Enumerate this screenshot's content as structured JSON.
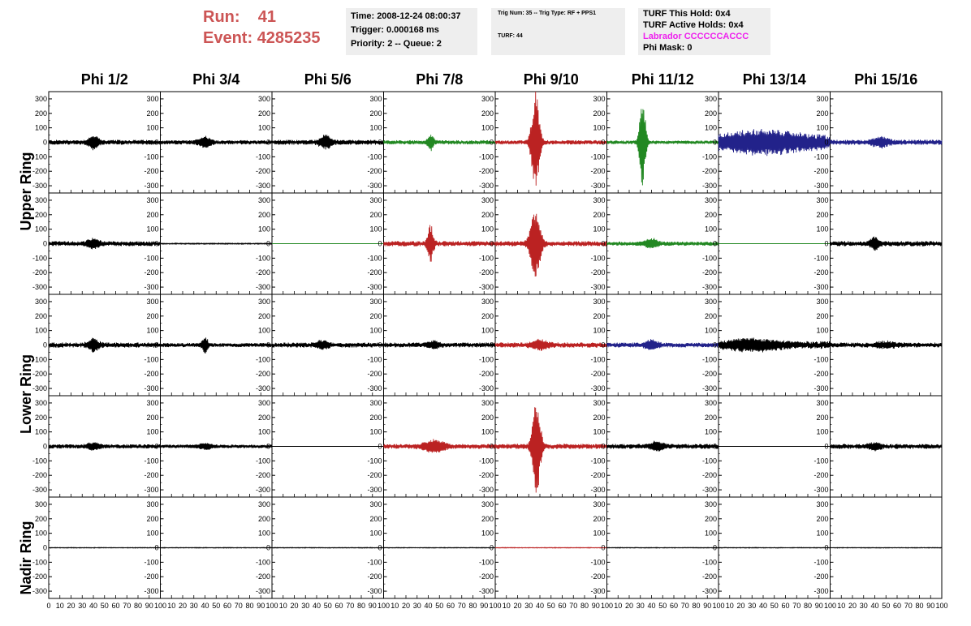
{
  "header": {
    "run_label": "Run:",
    "run_value": "41",
    "event_label": "Event:",
    "event_value": "4285235",
    "time": "Time: 2008-12-24 08:00:37",
    "trigger": "Trigger: 0.000168 ms",
    "priority": "Priority: 2 -- Queue: 2",
    "trig_num": "Trig Num: 35 -- Trig Type: RF + PPS1",
    "turf": "TURF: 44",
    "turf_this_hold": "TURF This Hold: 0x4",
    "turf_active_holds": "TURF Active Holds: 0x4",
    "labrador": "Labrador CCCCCCACCC",
    "phi_mask": "Phi Mask: 0"
  },
  "chart_data": {
    "type": "line",
    "columns": [
      "Phi 1/2",
      "Phi 3/4",
      "Phi 5/6",
      "Phi 7/8",
      "Phi 9/10",
      "Phi 11/12",
      "Phi 13/14",
      "Phi 15/16"
    ],
    "ring_labels": [
      "Upper Ring",
      "Lower Ring",
      "Nadir Ring"
    ],
    "xlim": [
      0,
      100
    ],
    "ylim": [
      -350,
      350
    ],
    "yticks": [
      -300,
      -200,
      -100,
      0,
      100,
      200,
      300
    ],
    "xtick_labels": [
      "0",
      "10",
      "20",
      "30",
      "40",
      "50",
      "60",
      "70",
      "80",
      "90",
      "100"
    ],
    "colors": {
      "black": "#000000",
      "green": "#228822",
      "red": "#bb2222",
      "blue": "#22228a"
    },
    "rows": [
      [
        {
          "color": "black",
          "noise": 14,
          "burst_center": 40,
          "burst_amp": 40,
          "burst_width": 5
        },
        {
          "color": "black",
          "noise": 12,
          "burst_center": 40,
          "burst_amp": 35,
          "burst_width": 6
        },
        {
          "color": "black",
          "noise": 14,
          "burst_center": 48,
          "burst_amp": 40,
          "burst_width": 6
        },
        {
          "color": "green",
          "noise": 12,
          "burst_center": 42,
          "burst_amp": 50,
          "burst_width": 3
        },
        {
          "color": "red",
          "noise": 12,
          "burst_center": 36,
          "burst_amp": 350,
          "burst_width": 4
        },
        {
          "color": "green",
          "noise": 10,
          "burst_center": 32,
          "burst_amp": 310,
          "burst_width": 3
        },
        {
          "color": "blue",
          "noise": 40,
          "burst_center": 40,
          "burst_amp": 50,
          "burst_width": 40
        },
        {
          "color": "blue",
          "noise": 15,
          "burst_center": 45,
          "burst_amp": 30,
          "burst_width": 8
        }
      ],
      [
        {
          "color": "black",
          "noise": 14,
          "burst_center": 40,
          "burst_amp": 30,
          "burst_width": 6
        },
        {
          "color": "black",
          "noise": 3,
          "burst_center": 50,
          "burst_amp": 0,
          "burst_width": 5
        },
        {
          "color": "green",
          "noise": 0,
          "burst_center": 50,
          "burst_amp": 0,
          "burst_width": 5
        },
        {
          "color": "red",
          "noise": 15,
          "burst_center": 42,
          "burst_amp": 120,
          "burst_width": 3
        },
        {
          "color": "red",
          "noise": 15,
          "burst_center": 36,
          "burst_amp": 240,
          "burst_width": 5
        },
        {
          "color": "green",
          "noise": 12,
          "burst_center": 40,
          "burst_amp": 30,
          "burst_width": 6
        },
        {
          "color": "green",
          "noise": 0,
          "burst_center": 50,
          "burst_amp": 0,
          "burst_width": 5
        },
        {
          "color": "black",
          "noise": 15,
          "burst_center": 40,
          "burst_amp": 40,
          "burst_width": 4
        }
      ],
      [
        {
          "color": "black",
          "noise": 15,
          "burst_center": 40,
          "burst_amp": 40,
          "burst_width": 5
        },
        {
          "color": "black",
          "noise": 12,
          "burst_center": 40,
          "burst_amp": 50,
          "burst_width": 3
        },
        {
          "color": "black",
          "noise": 14,
          "burst_center": 45,
          "burst_amp": 25,
          "burst_width": 6
        },
        {
          "color": "black",
          "noise": 14,
          "burst_center": 45,
          "burst_amp": 20,
          "burst_width": 6
        },
        {
          "color": "red",
          "noise": 15,
          "burst_center": 40,
          "burst_amp": 30,
          "burst_width": 8
        },
        {
          "color": "blue",
          "noise": 14,
          "burst_center": 40,
          "burst_amp": 30,
          "burst_width": 6
        },
        {
          "color": "black",
          "noise": 22,
          "burst_center": 30,
          "burst_amp": 30,
          "burst_width": 25
        },
        {
          "color": "black",
          "noise": 14,
          "burst_center": 50,
          "burst_amp": 15,
          "burst_width": 10
        }
      ],
      [
        {
          "color": "black",
          "noise": 12,
          "burst_center": 40,
          "burst_amp": 20,
          "burst_width": 6
        },
        {
          "color": "black",
          "noise": 10,
          "burst_center": 40,
          "burst_amp": 20,
          "burst_width": 6
        },
        {
          "color": "black",
          "noise": 0,
          "burst_center": 50,
          "burst_amp": 0,
          "burst_width": 5
        },
        {
          "color": "red",
          "noise": 14,
          "burst_center": 45,
          "burst_amp": 40,
          "burst_width": 10
        },
        {
          "color": "red",
          "noise": 15,
          "burst_center": 37,
          "burst_amp": 320,
          "burst_width": 4
        },
        {
          "color": "black",
          "noise": 14,
          "burst_center": 45,
          "burst_amp": 30,
          "burst_width": 6
        },
        {
          "color": "black",
          "noise": 0,
          "burst_center": 50,
          "burst_amp": 0,
          "burst_width": 5
        },
        {
          "color": "black",
          "noise": 14,
          "burst_center": 40,
          "burst_amp": 20,
          "burst_width": 6
        }
      ],
      [
        {
          "color": "black",
          "noise": 2,
          "burst_center": 50,
          "burst_amp": 0,
          "burst_width": 5
        },
        {
          "color": "black",
          "noise": 2,
          "burst_center": 50,
          "burst_amp": 0,
          "burst_width": 5
        },
        {
          "color": "black",
          "noise": 2,
          "burst_center": 50,
          "burst_amp": 0,
          "burst_width": 5
        },
        {
          "color": "black",
          "noise": 2,
          "burst_center": 50,
          "burst_amp": 0,
          "burst_width": 5
        },
        {
          "color": "red",
          "noise": 2,
          "burst_center": 50,
          "burst_amp": 0,
          "burst_width": 5
        },
        {
          "color": "black",
          "noise": 2,
          "burst_center": 50,
          "burst_amp": 0,
          "burst_width": 5
        },
        {
          "color": "black",
          "noise": 2,
          "burst_center": 50,
          "burst_amp": 0,
          "burst_width": 5
        },
        {
          "color": "black",
          "noise": 2,
          "burst_center": 50,
          "burst_amp": 0,
          "burst_width": 5
        }
      ]
    ]
  }
}
